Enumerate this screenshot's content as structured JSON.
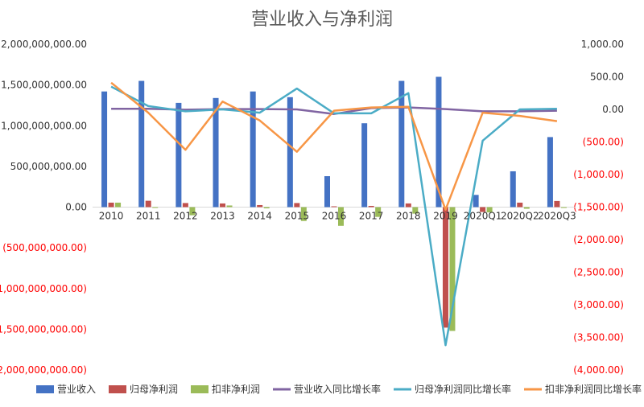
{
  "chart_data": {
    "type": "bar",
    "title": "营业收入与净利润",
    "categories": [
      "2010",
      "2011",
      "2012",
      "2013",
      "2014",
      "2015",
      "2016",
      "2017",
      "2018",
      "2019",
      "2020Q1",
      "2020Q2",
      "2020Q3"
    ],
    "left_axis": {
      "ylim": [
        -2000000000,
        2000000000
      ],
      "ticks": [
        2000000000,
        1500000000,
        1000000000,
        500000000,
        0,
        -500000000,
        -1000000000,
        -1500000000,
        -2000000000
      ],
      "tick_labels": [
        "2,000,000,000.00",
        "1,500,000,000.00",
        "1,000,000,000.00",
        "500,000,000.00",
        "0.00",
        "(500,000,000.00)",
        "(1,000,000,000.00)",
        "(1,500,000,000.00)",
        "(2,000,000,000.00)"
      ]
    },
    "right_axis": {
      "ylim": [
        -4000,
        1000
      ],
      "ticks": [
        1000,
        500,
        0,
        -500,
        -1000,
        -1500,
        -2000,
        -2500,
        -3000,
        -3500,
        -4000
      ],
      "tick_labels": [
        "1,000.00",
        "500.00",
        "0.00",
        "(500.00)",
        "(1,000.00)",
        "(1,500.00)",
        "(2,000.00)",
        "(2,500.00)",
        "(3,000.00)",
        "(3,500.00)",
        "(4,000.00)"
      ]
    },
    "bar_series": [
      {
        "name": "营业收入",
        "color": "#4472C4",
        "values": [
          1420000000,
          1550000000,
          1280000000,
          1340000000,
          1420000000,
          1350000000,
          380000000,
          1030000000,
          1550000000,
          1600000000,
          150000000,
          440000000,
          860000000
        ]
      },
      {
        "name": "归母净利润",
        "color": "#C0504D",
        "values": [
          55000000,
          78000000,
          50000000,
          45000000,
          25000000,
          50000000,
          10000000,
          15000000,
          45000000,
          -1480000000,
          -60000000,
          55000000,
          75000000
        ]
      },
      {
        "name": "扣非净利润",
        "color": "#9BBB59",
        "values": [
          55000000,
          -10000000,
          -100000000,
          20000000,
          -15000000,
          -170000000,
          -230000000,
          -120000000,
          -80000000,
          -1520000000,
          -65000000,
          -20000000,
          -10000000
        ]
      }
    ],
    "line_series": [
      {
        "name": "营业收入同比增长率",
        "color": "#8064A2",
        "values": [
          10,
          10,
          -5,
          5,
          5,
          0,
          -70,
          20,
          30,
          5,
          -30,
          -30,
          -20
        ]
      },
      {
        "name": "归母净利润同比增长率",
        "color": "#4BACC6",
        "values": [
          350,
          50,
          -30,
          0,
          -50,
          320,
          -60,
          -60,
          250,
          -3620,
          -480,
          0,
          10
        ]
      },
      {
        "name": "扣非净利润同比增长率",
        "color": "#F79646",
        "values": [
          410,
          -50,
          -620,
          120,
          -170,
          -650,
          -20,
          30,
          40,
          -1540,
          -50,
          -100,
          -180
        ]
      }
    ],
    "grid": false,
    "legend": "bottom"
  }
}
